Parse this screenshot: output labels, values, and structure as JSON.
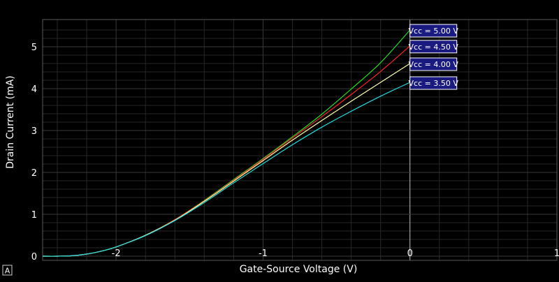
{
  "chart_data": {
    "type": "line",
    "title": "",
    "xlabel": "Gate-Source Voltage (V)",
    "ylabel": "Drain Current (mA)",
    "xlim": [
      -2.5,
      1.0
    ],
    "ylim": [
      -0.1,
      5.65
    ],
    "x_ticks": [
      -2,
      -1,
      0,
      1
    ],
    "y_ticks": [
      0,
      1,
      2,
      3,
      4,
      5
    ],
    "x_tick_labels": [
      "-2",
      "-1",
      "0",
      "1"
    ],
    "y_tick_labels": [
      "0",
      "1",
      "2",
      "3",
      "4",
      "5"
    ],
    "grid": true,
    "background": "#000000",
    "grid_color": "#3a3a3a",
    "series": [
      {
        "name": "Vcc = 5.00 V",
        "color": "#22dd22",
        "x": [
          -2.5,
          -2.4,
          -2.3,
          -2.2,
          -2.1,
          -2.0,
          -1.8,
          -1.6,
          -1.4,
          -1.2,
          -1.0,
          -0.8,
          -0.6,
          -0.4,
          -0.2,
          0.0
        ],
        "y": [
          0.0,
          0.0,
          0.01,
          0.05,
          0.12,
          0.22,
          0.5,
          0.87,
          1.33,
          1.83,
          2.33,
          2.85,
          3.39,
          3.99,
          4.62,
          5.4
        ]
      },
      {
        "name": "Vcc = 4.50 V",
        "color": "#ff2222",
        "x": [
          -2.5,
          -2.4,
          -2.3,
          -2.2,
          -2.1,
          -2.0,
          -1.8,
          -1.6,
          -1.4,
          -1.2,
          -1.0,
          -0.8,
          -0.6,
          -0.4,
          -0.2,
          0.0
        ],
        "y": [
          0.0,
          0.0,
          0.01,
          0.05,
          0.12,
          0.22,
          0.5,
          0.87,
          1.32,
          1.81,
          2.31,
          2.82,
          3.33,
          3.86,
          4.41,
          5.02
        ]
      },
      {
        "name": "Vcc = 4.00 V",
        "color": "#ffffaa",
        "x": [
          -2.5,
          -2.4,
          -2.3,
          -2.2,
          -2.1,
          -2.0,
          -1.8,
          -1.6,
          -1.4,
          -1.2,
          -1.0,
          -0.8,
          -0.6,
          -0.4,
          -0.2,
          0.0
        ],
        "y": [
          0.0,
          0.0,
          0.01,
          0.05,
          0.12,
          0.22,
          0.5,
          0.86,
          1.31,
          1.79,
          2.28,
          2.77,
          3.24,
          3.7,
          4.15,
          4.6
        ]
      },
      {
        "name": "Vcc = 3.50 V",
        "color": "#22dddd",
        "x": [
          -2.5,
          -2.4,
          -2.3,
          -2.2,
          -2.1,
          -2.0,
          -1.8,
          -1.6,
          -1.4,
          -1.2,
          -1.0,
          -0.8,
          -0.6,
          -0.4,
          -0.2,
          0.0
        ],
        "y": [
          0.0,
          0.0,
          0.01,
          0.05,
          0.12,
          0.22,
          0.49,
          0.85,
          1.28,
          1.75,
          2.21,
          2.66,
          3.08,
          3.46,
          3.82,
          4.15
        ]
      }
    ],
    "legend": {
      "placement": "at line ends, right of x = 0",
      "label_background": "#1a1a80",
      "label_border": "#ffffff"
    }
  },
  "corner_icon": {
    "name": "autoscale-icon",
    "glyph": "A"
  }
}
